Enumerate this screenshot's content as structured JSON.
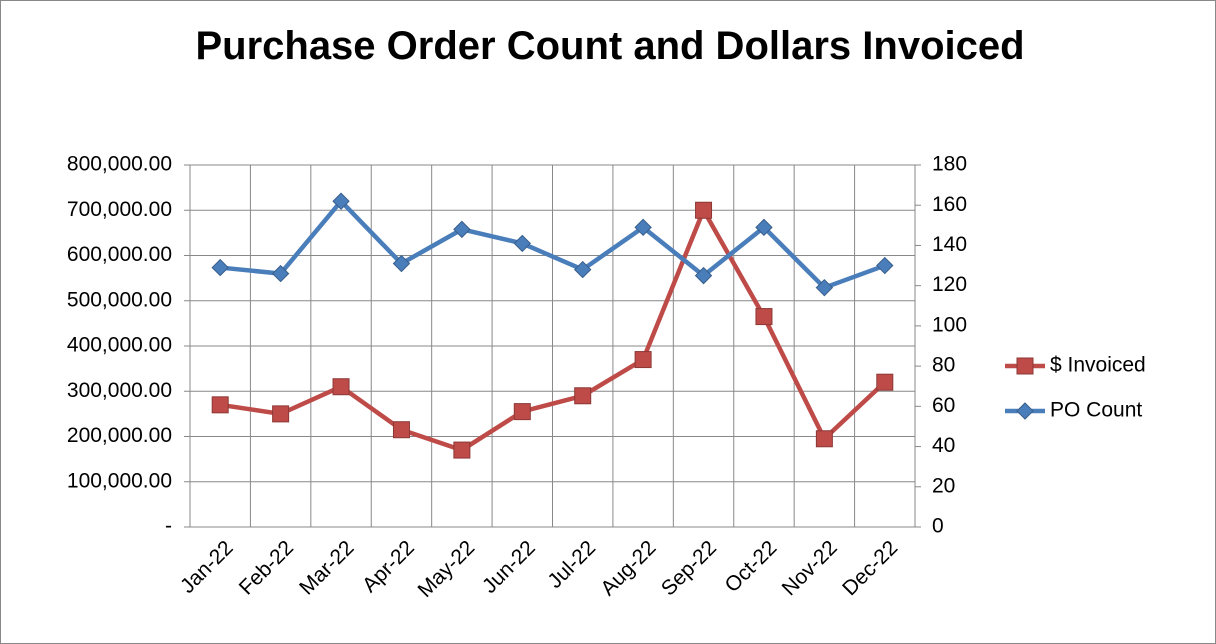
{
  "chart_data": {
    "type": "line",
    "title": "Purchase Order Count and Dollars Invoiced",
    "categories": [
      "Jan-22",
      "Feb-22",
      "Mar-22",
      "Apr-22",
      "May-22",
      "Jun-22",
      "Jul-22",
      "Aug-22",
      "Sep-22",
      "Oct-22",
      "Nov-22",
      "Dec-22"
    ],
    "series": [
      {
        "name": "$ Invoiced",
        "color": "#be4b48",
        "marker": "square",
        "values": [
          270000,
          250000,
          310000,
          215000,
          170000,
          255000,
          290000,
          370000,
          700000,
          465000,
          195000,
          320000
        ]
      },
      {
        "name": "PO Count",
        "color": "#4a7ebb",
        "marker": "diamond",
        "axis": "y2",
        "values": [
          129,
          126,
          162,
          131,
          148,
          141,
          128,
          149,
          125,
          149,
          119,
          130
        ]
      }
    ],
    "ylim": [
      0,
      800000
    ],
    "yticks": [
      {
        "value": 0,
        "label": "-"
      },
      {
        "value": 100000,
        "label": "100,000.00"
      },
      {
        "value": 200000,
        "label": "200,000.00"
      },
      {
        "value": 300000,
        "label": "300,000.00"
      },
      {
        "value": 400000,
        "label": "400,000.00"
      },
      {
        "value": 500000,
        "label": "500,000.00"
      },
      {
        "value": 600000,
        "label": "600,000.00"
      },
      {
        "value": 700000,
        "label": "700,000.00"
      },
      {
        "value": 800000,
        "label": "800,000.00"
      }
    ],
    "y2lim": [
      0,
      180
    ],
    "y2ticks": [
      0,
      20,
      40,
      60,
      80,
      100,
      120,
      140,
      160,
      180
    ],
    "grid": true,
    "legend": "right"
  }
}
